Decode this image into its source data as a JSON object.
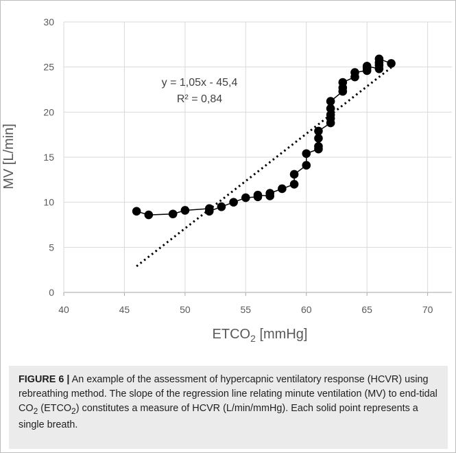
{
  "chart_data": {
    "type": "scatter",
    "xlabel": "ETCO",
    "xlabel_sub": "2",
    "xlabel_unit": " [mmHg]",
    "ylabel": "MV [L/min]",
    "xlim": [
      40,
      72
    ],
    "ylim": [
      0,
      30
    ],
    "xticks": [
      "40",
      "45",
      "50",
      "55",
      "60",
      "65",
      "70"
    ],
    "yticks": [
      "0",
      "5",
      "10",
      "15",
      "20",
      "25",
      "30"
    ],
    "grid": true,
    "legend": "none",
    "series": [
      {
        "marker": "filled-circle",
        "connected": true,
        "color": "#000000",
        "points": [
          [
            46,
            9.0
          ],
          [
            47,
            8.6
          ],
          [
            49,
            8.7
          ],
          [
            50,
            9.1
          ],
          [
            52,
            9.3
          ],
          [
            52,
            9.0
          ],
          [
            53,
            9.5
          ],
          [
            54,
            10.0
          ],
          [
            55,
            10.5
          ],
          [
            56,
            10.6
          ],
          [
            56,
            10.8
          ],
          [
            57,
            10.7
          ],
          [
            57,
            11.0
          ],
          [
            58,
            11.5
          ],
          [
            59,
            12.0
          ],
          [
            59,
            13.1
          ],
          [
            60,
            14.1
          ],
          [
            60,
            15.4
          ],
          [
            61,
            15.9
          ],
          [
            61,
            16.2
          ],
          [
            61,
            17.1
          ],
          [
            61,
            17.9
          ],
          [
            62,
            18.8
          ],
          [
            62,
            19.3
          ],
          [
            62,
            19.7
          ],
          [
            62,
            20.4
          ],
          [
            62,
            21.2
          ],
          [
            63,
            22.3
          ],
          [
            63,
            22.7
          ],
          [
            63,
            23.3
          ],
          [
            64,
            23.9
          ],
          [
            64,
            24.4
          ],
          [
            65,
            24.6
          ],
          [
            65,
            24.9
          ],
          [
            65,
            25.1
          ],
          [
            66,
            24.8
          ],
          [
            66,
            25.2
          ],
          [
            66,
            25.5
          ],
          [
            66,
            25.9
          ],
          [
            67,
            25.4
          ]
        ]
      }
    ],
    "trendline": {
      "style": "dotted",
      "slope": 1.05,
      "intercept": -45.4,
      "x_range": [
        46,
        67
      ],
      "color": "#000000"
    },
    "annotations": {
      "equation": "y = 1,05x - 45,4",
      "r2": "R² = 0,84"
    }
  },
  "caption": {
    "label": "FIGURE 6 |",
    "text_1": " An example of the assessment of hypercapnic ventilatory response (HCVR) using rebreathing method. The slope of the regression line relating minute ventilation (MV) to end-tidal CO",
    "sub_1": "2",
    "text_2": " (ETCO",
    "sub_2": "2",
    "text_3": ") constitutes a measure of HCVR (L/min/mmHg). Each solid point represents a single breath."
  }
}
